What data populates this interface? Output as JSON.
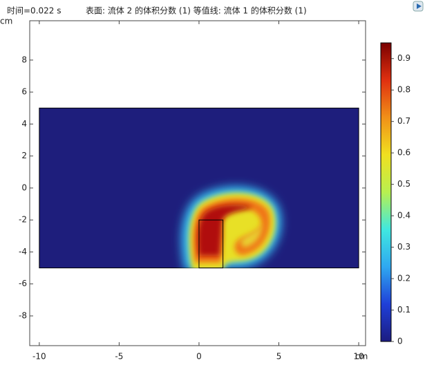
{
  "chart_data": {
    "type": "surface",
    "time_label": "时间=0.022 s",
    "title": "表面: 流体 2 的体积分数 (1)  等值线: 流体 1 的体积分数 (1)",
    "x_unit": "cm",
    "y_unit": "cm",
    "xlim": [
      -10.6,
      10.43
    ],
    "xticks": [
      -10,
      -5,
      0,
      5,
      10
    ],
    "ylim": [
      -9.86,
      10.46
    ],
    "yticks": [
      -8,
      -6,
      -4,
      -2,
      0,
      2,
      4,
      6,
      8
    ],
    "domain": {
      "xlim": [
        -10,
        10
      ],
      "ylim": [
        -5,
        5
      ]
    },
    "inlet": {
      "xlim": [
        0,
        1.5
      ],
      "ylim": [
        -5,
        -2
      ]
    },
    "colorbar": {
      "lim": [
        0,
        0.95
      ],
      "ticks": [
        0,
        0.1,
        0.2,
        0.3,
        0.4,
        0.5,
        0.6,
        0.7,
        0.8,
        0.9
      ],
      "colormap": [
        "#1c1c80",
        "#1f3fd8",
        "#2fa8f0",
        "#40e8e0",
        "#b8f050",
        "#f0e020",
        "#f09018",
        "#e03010",
        "#7a0000"
      ]
    }
  }
}
